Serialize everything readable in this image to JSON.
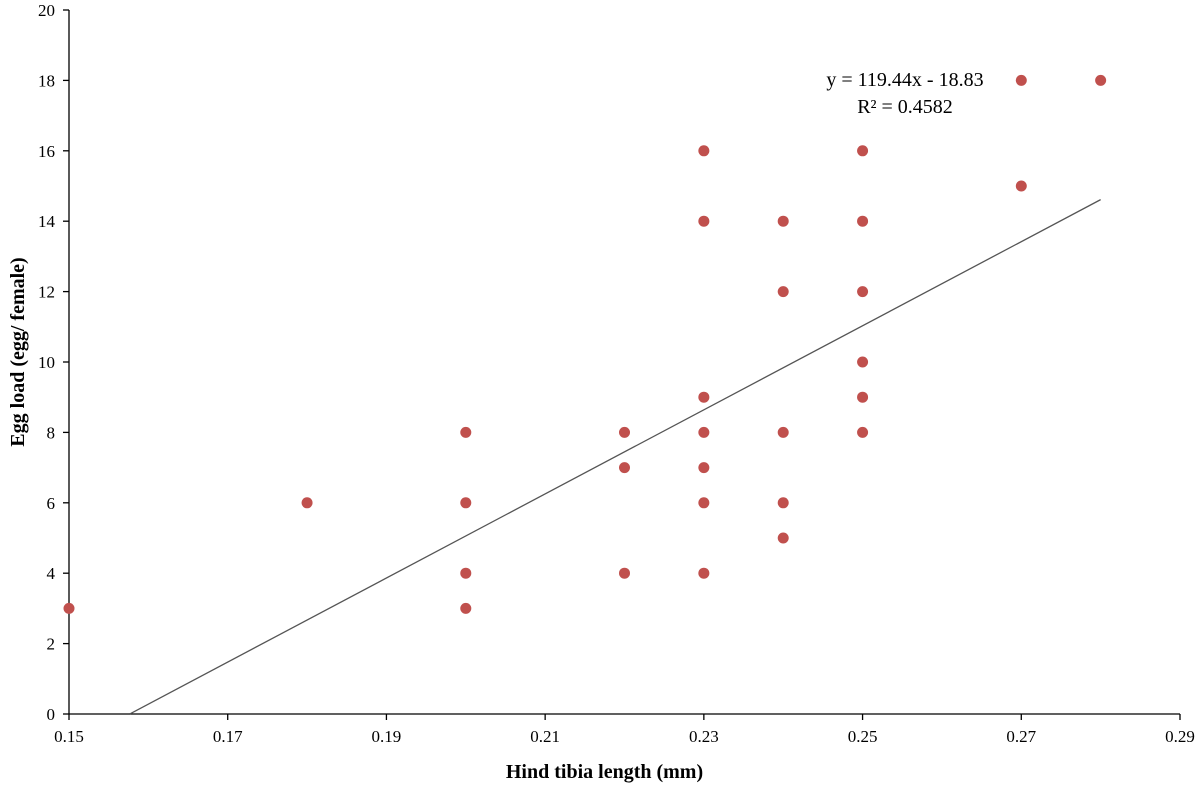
{
  "chart_data": {
    "type": "scatter",
    "title": "",
    "xlabel": "Hind tibia length (mm)",
    "ylabel": "Egg load (egg/ female)",
    "xlim": [
      0.15,
      0.29
    ],
    "ylim": [
      0,
      20
    ],
    "x_ticks": [
      "0.15",
      "0.17",
      "0.19",
      "0.21",
      "0.23",
      "0.25",
      "0.27",
      "0.29"
    ],
    "y_ticks": [
      "0",
      "2",
      "4",
      "6",
      "8",
      "10",
      "12",
      "14",
      "16",
      "18",
      "20"
    ],
    "grid": false,
    "legend": "none",
    "marker_color": "#c0504d",
    "points": [
      {
        "x": 0.15,
        "y": 3
      },
      {
        "x": 0.18,
        "y": 6
      },
      {
        "x": 0.2,
        "y": 8
      },
      {
        "x": 0.2,
        "y": 6
      },
      {
        "x": 0.2,
        "y": 4
      },
      {
        "x": 0.2,
        "y": 3
      },
      {
        "x": 0.22,
        "y": 8
      },
      {
        "x": 0.22,
        "y": 7
      },
      {
        "x": 0.22,
        "y": 4
      },
      {
        "x": 0.23,
        "y": 16
      },
      {
        "x": 0.23,
        "y": 14
      },
      {
        "x": 0.23,
        "y": 9
      },
      {
        "x": 0.23,
        "y": 8
      },
      {
        "x": 0.23,
        "y": 7
      },
      {
        "x": 0.23,
        "y": 6
      },
      {
        "x": 0.23,
        "y": 4
      },
      {
        "x": 0.24,
        "y": 14
      },
      {
        "x": 0.24,
        "y": 12
      },
      {
        "x": 0.24,
        "y": 8
      },
      {
        "x": 0.24,
        "y": 6
      },
      {
        "x": 0.24,
        "y": 5
      },
      {
        "x": 0.25,
        "y": 16
      },
      {
        "x": 0.25,
        "y": 14
      },
      {
        "x": 0.25,
        "y": 12
      },
      {
        "x": 0.25,
        "y": 10
      },
      {
        "x": 0.25,
        "y": 9
      },
      {
        "x": 0.25,
        "y": 8
      },
      {
        "x": 0.27,
        "y": 18
      },
      {
        "x": 0.27,
        "y": 15
      },
      {
        "x": 0.28,
        "y": 18
      }
    ],
    "trendline": {
      "slope": 119.44,
      "intercept": -18.83,
      "x_start": 0.1577,
      "x_end": 0.28,
      "color": "#555555"
    },
    "annotations": {
      "equation": "y = 119.44x - 18.83",
      "r_squared": "R² = 0.4582"
    }
  }
}
